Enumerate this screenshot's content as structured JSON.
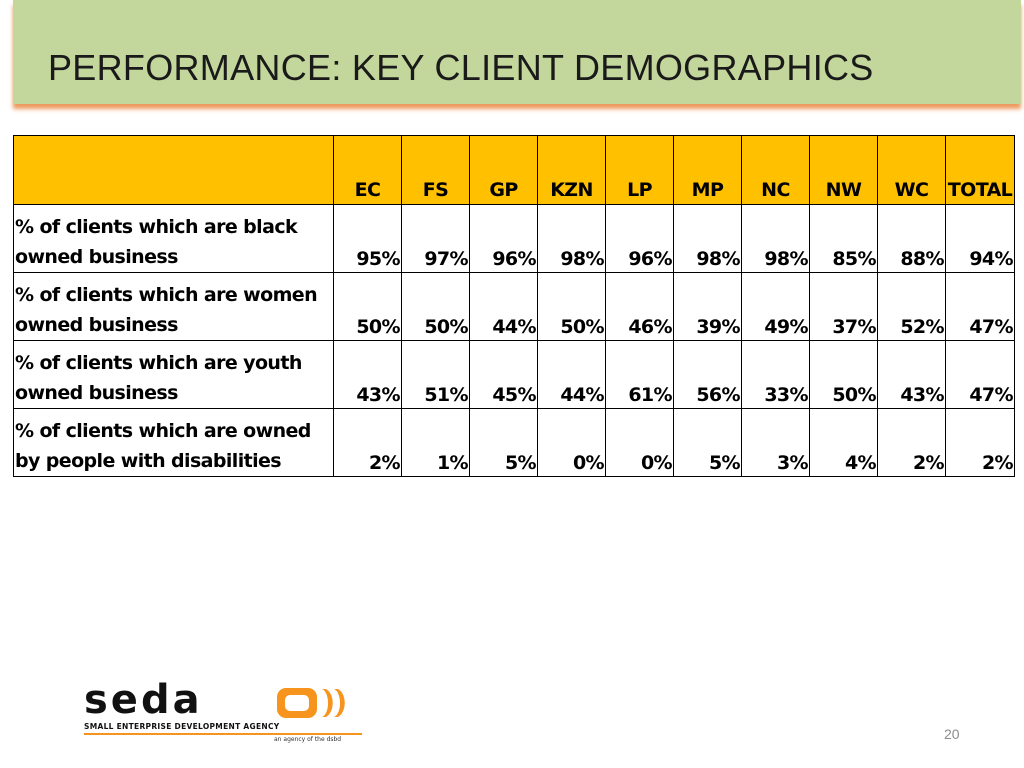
{
  "slide": {
    "title": "PERFORMANCE: KEY CLIENT DEMOGRAPHICS",
    "page_number": "20"
  },
  "table": {
    "corner": "",
    "columns": [
      "EC",
      "FS",
      "GP",
      "KZN",
      "LP",
      "MP",
      "NC",
      "NW",
      "WC",
      "TOTAL"
    ],
    "rows": [
      {
        "label_line1": "% of clients which are black",
        "label_line2": "owned business",
        "values": [
          "95%",
          "97%",
          "96%",
          "98%",
          "96%",
          "98%",
          "98%",
          "85%",
          "88%",
          "94%"
        ]
      },
      {
        "label_line1": "% of clients which are women",
        "label_line2": "owned business",
        "values": [
          "50%",
          "50%",
          "44%",
          "50%",
          "46%",
          "39%",
          "49%",
          "37%",
          "52%",
          "47%"
        ]
      },
      {
        "label_line1": "% of clients which are youth",
        "label_line2": "owned business",
        "values": [
          "43%",
          "51%",
          "45%",
          "44%",
          "61%",
          "56%",
          "33%",
          "50%",
          "43%",
          "47%"
        ]
      },
      {
        "label_line1": "% of clients which are owned",
        "label_line2": "by people with disabilities",
        "values": [
          "2%",
          "1%",
          "5%",
          "0%",
          "0%",
          "5%",
          "3%",
          "4%",
          "2%",
          "2%"
        ]
      }
    ]
  },
  "logo": {
    "wordmark": "seda",
    "subtitle": "SMALL ENTERPRISE DEVELOPMENT AGENCY",
    "tagline": "an agency of the dsbd",
    "icon": "seda-logo-mark",
    "accent_color": "#f7941d"
  },
  "colors": {
    "title_bar": "#c3d69b",
    "header_fill": "#ffc000",
    "title_shadow": "#e7782a"
  }
}
